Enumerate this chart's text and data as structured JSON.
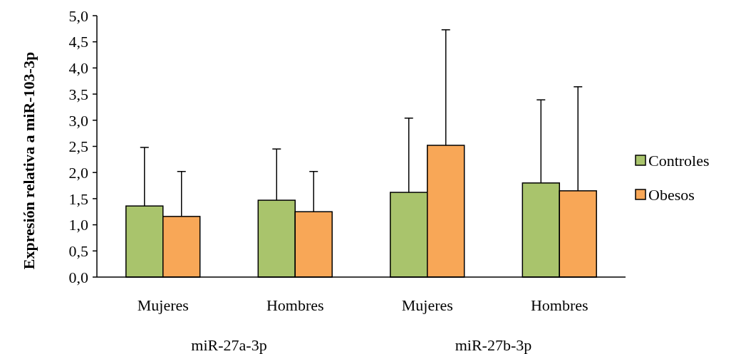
{
  "chart_data": {
    "type": "bar",
    "ylabel": "Expresión relativa a miR-103-3p",
    "categories": [
      "Mujeres",
      "Hombres",
      "Mujeres",
      "Hombres"
    ],
    "series": [
      {
        "name": "Controles",
        "color": "#a9c46c",
        "values": [
          1.36,
          1.47,
          1.62,
          1.8
        ],
        "errors": [
          [
            1.36,
            2.48
          ],
          [
            1.47,
            2.45
          ],
          [
            1.62,
            3.04
          ],
          [
            1.8,
            3.39
          ]
        ]
      },
      {
        "name": "Obesos",
        "color": "#f8a757",
        "values": [
          1.16,
          1.25,
          2.52,
          1.65
        ],
        "errors": [
          [
            1.16,
            2.02
          ],
          [
            1.25,
            2.02
          ],
          [
            2.52,
            4.73
          ],
          [
            1.65,
            3.64
          ]
        ]
      }
    ],
    "ylim": [
      0,
      5
    ],
    "yticks": [
      {
        "value": 0,
        "label": "0,0"
      },
      {
        "value": 0.5,
        "label": "0,5"
      },
      {
        "value": 1,
        "label": "1,0"
      },
      {
        "value": 1.5,
        "label": "1,5"
      },
      {
        "value": 2,
        "label": "2,0"
      },
      {
        "value": 2.5,
        "label": "2,5"
      },
      {
        "value": 3,
        "label": "3,0"
      },
      {
        "value": 3.5,
        "label": "3,5"
      },
      {
        "value": 4,
        "label": "4,0"
      },
      {
        "value": 4.5,
        "label": "4,5"
      },
      {
        "value": 5,
        "label": "5,0"
      }
    ],
    "annotations": [
      "miR-27a-3p",
      "miR-27b-3p"
    ],
    "legend": "right",
    "grid": false
  }
}
